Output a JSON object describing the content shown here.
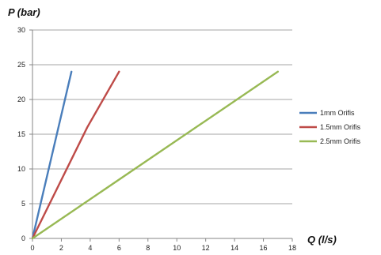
{
  "chart_data": {
    "type": "line",
    "title": "",
    "xlabel": "Q (l/s)",
    "ylabel": "P (bar)",
    "xlim": [
      0,
      18
    ],
    "ylim": [
      0,
      30
    ],
    "xticks": [
      0,
      2,
      4,
      6,
      8,
      10,
      12,
      14,
      16,
      18
    ],
    "yticks": [
      0,
      5,
      10,
      15,
      20,
      25,
      30
    ],
    "grid": "horizontal",
    "legend_position": "right",
    "series": [
      {
        "name": "1mm Orifis",
        "color": "#4a7ebb",
        "x": [
          0,
          2.7
        ],
        "y": [
          0,
          24
        ]
      },
      {
        "name": "1.5mm Orifis",
        "color": "#be4b48",
        "x": [
          0,
          3.8,
          6.0
        ],
        "y": [
          0,
          16,
          24
        ]
      },
      {
        "name": "2.5mm Orifis",
        "color": "#98b954",
        "x": [
          0,
          17.0
        ],
        "y": [
          0,
          24
        ]
      }
    ]
  }
}
